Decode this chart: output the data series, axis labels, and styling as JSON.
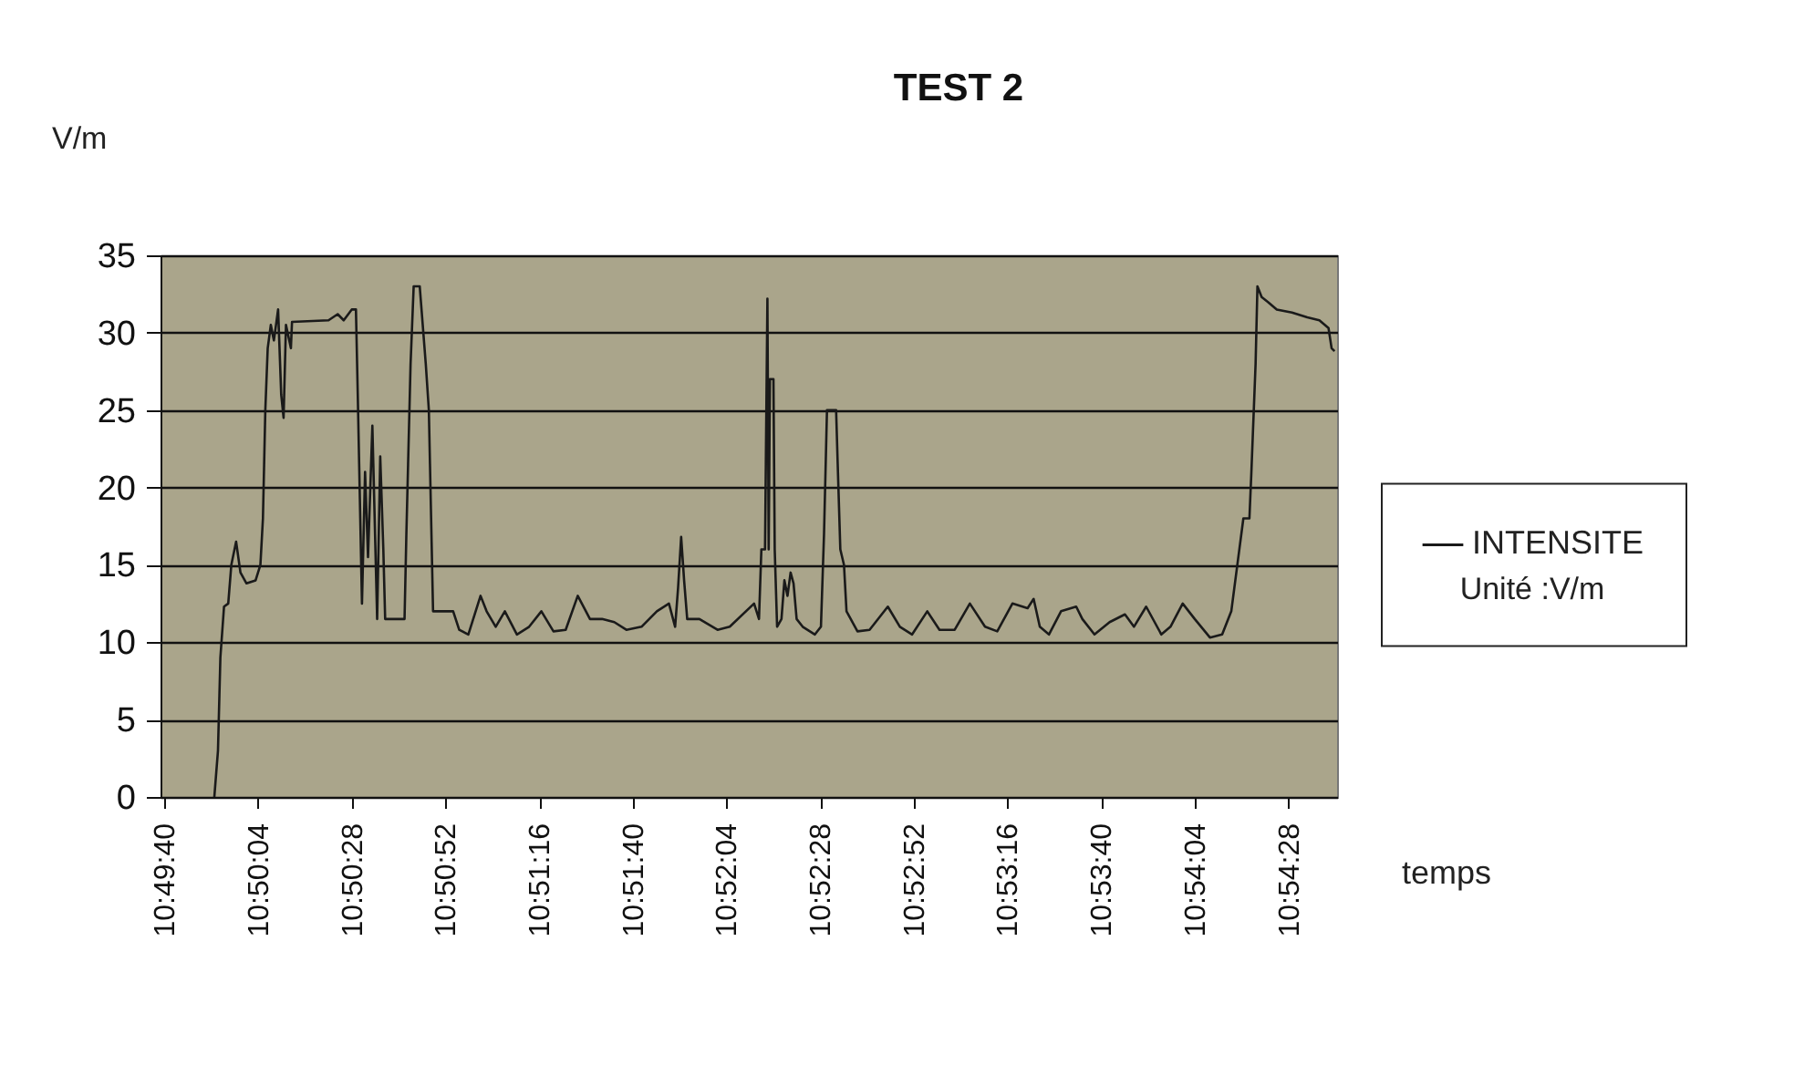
{
  "chart_data": {
    "type": "line",
    "title": "TEST 2",
    "xlabel": "temps",
    "ylabel": "V/m",
    "legend_title": "Unité :V/m",
    "legend": "right",
    "grid": "y",
    "xlim": [
      10.8275,
      10.91125
    ],
    "xticks": [
      {
        "value": 10.827778,
        "label": "10:49:40"
      },
      {
        "value": 10.834444,
        "label": "10:50:04"
      },
      {
        "value": 10.841111,
        "label": "10:50:28"
      },
      {
        "value": 10.847778,
        "label": "10:50:52"
      },
      {
        "value": 10.854444,
        "label": "10:51:16"
      },
      {
        "value": 10.861111,
        "label": "10:51:40"
      },
      {
        "value": 10.867778,
        "label": "10:52:04"
      },
      {
        "value": 10.874444,
        "label": "10:52:28"
      },
      {
        "value": 10.881111,
        "label": "10:52:52"
      },
      {
        "value": 10.887778,
        "label": "10:53:16"
      },
      {
        "value": 10.894444,
        "label": "10:53:40"
      },
      {
        "value": 10.901111,
        "label": "10:54:04"
      },
      {
        "value": 10.907778,
        "label": "10:54:28"
      }
    ],
    "ylim": [
      0,
      35
    ],
    "yticks": [
      0,
      5,
      10,
      15,
      20,
      25,
      30,
      35
    ],
    "series": [
      {
        "name": "INTENSITE",
        "color": "#1a1a1a",
        "x": [
          10.83133,
          10.83159,
          10.83176,
          10.83202,
          10.83232,
          10.83254,
          10.83288,
          10.83319,
          10.83362,
          10.83427,
          10.83461,
          10.83479,
          10.83496,
          10.83513,
          10.83535,
          10.83557,
          10.83587,
          10.83609,
          10.83626,
          10.83643,
          10.83678,
          10.83686,
          10.83946,
          10.84011,
          10.84054,
          10.84111,
          10.84141,
          10.84154,
          10.84184,
          10.84206,
          10.84227,
          10.84258,
          10.84292,
          10.84314,
          10.84336,
          10.84349,
          10.84487,
          10.845,
          10.8453,
          10.84552,
          10.84595,
          10.84638,
          10.8466,
          10.8469,
          10.84833,
          10.84876,
          10.84941,
          10.85028,
          10.85071,
          10.85136,
          10.85201,
          10.85287,
          10.85374,
          10.85461,
          10.85547,
          10.85634,
          10.8572,
          10.85807,
          10.85893,
          10.8598,
          10.86066,
          10.86174,
          10.86283,
          10.86369,
          10.86413,
          10.86434,
          10.86456,
          10.86477,
          10.86499,
          10.86586,
          10.86715,
          10.86802,
          10.86975,
          10.8701,
          10.87027,
          10.87053,
          10.8707,
          10.87079,
          10.87088,
          10.87113,
          10.87122,
          10.87139,
          10.8717,
          10.87191,
          10.87213,
          10.87235,
          10.87256,
          10.87278,
          10.87321,
          10.87408,
          10.87451,
          10.87473,
          10.87494,
          10.87559,
          10.87572,
          10.87589,
          10.87615,
          10.87633,
          10.87711,
          10.87797,
          10.87927,
          10.88013,
          10.881,
          10.88208,
          10.88295,
          10.88403,
          10.88511,
          10.88619,
          10.88706,
          10.88814,
          10.88922,
          10.88965,
          10.89009,
          10.89074,
          10.8916,
          10.89268,
          10.89312,
          10.89398,
          10.89506,
          10.89615,
          10.89679,
          10.89766,
          10.89874,
          10.89939,
          10.90026,
          10.90112,
          10.9022,
          10.90307,
          10.90372,
          10.90415,
          10.90458,
          10.90501,
          10.90515,
          10.90545,
          10.90558,
          10.90588,
          10.90631,
          10.90696,
          10.90804,
          10.90913,
          10.90999,
          10.91064,
          10.91086,
          10.91107
        ],
        "values": [
          0,
          3,
          9,
          12.3,
          12.5,
          15,
          16.5,
          14.5,
          13.8,
          14,
          15,
          18,
          25,
          29,
          30.5,
          29.5,
          31.5,
          26,
          24.5,
          30.5,
          29,
          30.7,
          30.8,
          31.2,
          30.8,
          31.5,
          31.5,
          26,
          12.5,
          21,
          15.5,
          24,
          11.5,
          22,
          16,
          11.5,
          11.5,
          17,
          28,
          33,
          33,
          28,
          25,
          12,
          12,
          10.8,
          10.5,
          13,
          12,
          11,
          12,
          10.5,
          11,
          12,
          10.7,
          10.8,
          13,
          11.5,
          11.5,
          11.3,
          10.8,
          11,
          12,
          12.5,
          11,
          13.5,
          16.8,
          14,
          11.5,
          11.5,
          10.8,
          11,
          12.5,
          11.5,
          16,
          16,
          32.2,
          16,
          27,
          27,
          16,
          11,
          11.5,
          14,
          13,
          14.5,
          13.8,
          11.5,
          11,
          10.5,
          11,
          17,
          25,
          25,
          21,
          16,
          15,
          12,
          10.7,
          10.8,
          12.3,
          11,
          10.5,
          12,
          10.8,
          10.8,
          12.5,
          11,
          10.7,
          12.5,
          12.2,
          12.8,
          11,
          10.5,
          12,
          12.3,
          11.5,
          10.5,
          11.3,
          11.8,
          11,
          12.3,
          10.5,
          11,
          12.5,
          11.5,
          10.3,
          10.5,
          12,
          15,
          18,
          18,
          21,
          28,
          33,
          32.3,
          32,
          31.5,
          31.3,
          31,
          30.8,
          30.3,
          29,
          28.8
        ]
      }
    ]
  }
}
